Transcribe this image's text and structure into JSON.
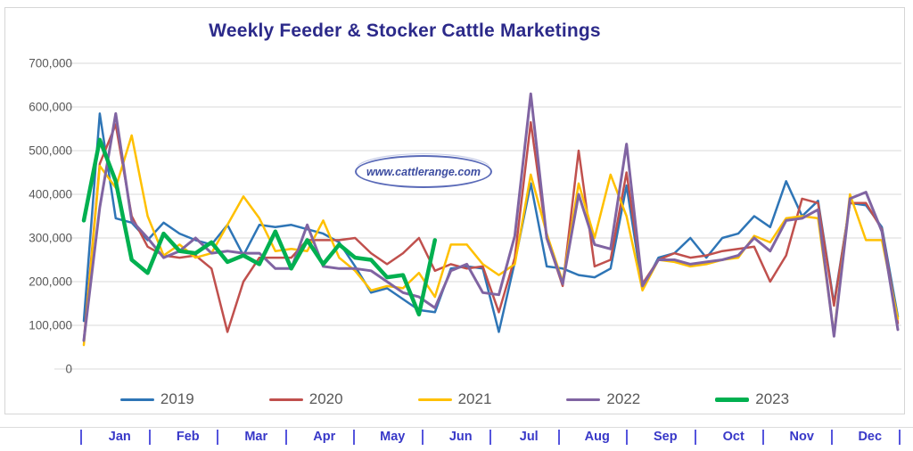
{
  "chart": {
    "title": "Weekly Feeder & Stocker Cattle Marketings",
    "title_color": "#2c2a8a",
    "watermark": "www.cattlerange.com",
    "border_color": "#d6d6d6",
    "gridline_color": "#d9d9d9",
    "axis_label_color": "#595959",
    "month_label_color": "#3838c8",
    "legend_label_color": "#595959"
  },
  "chart_data": {
    "type": "line",
    "title": "Weekly Feeder & Stocker Cattle Marketings",
    "x_unit": "week of year (1-52)",
    "x_axis_months": [
      "Jan",
      "Feb",
      "Mar",
      "Apr",
      "May",
      "Jun",
      "Jul",
      "Aug",
      "Sep",
      "Oct",
      "Nov",
      "Dec"
    ],
    "ylim": [
      0,
      700000
    ],
    "y_ticks": [
      0,
      100000,
      200000,
      300000,
      400000,
      500000,
      600000,
      700000
    ],
    "y_tick_labels": [
      "0",
      "100,000",
      "200,000",
      "300,000",
      "400,000",
      "500,000",
      "600,000",
      "700,000"
    ],
    "grid": "horizontal gridlines every 100,000",
    "legend_position": "bottom",
    "series": [
      {
        "name": "2019",
        "color": "#2E75B6",
        "line_width": 2.5,
        "values": [
          110000,
          585000,
          345000,
          335000,
          295000,
          335000,
          310000,
          295000,
          285000,
          330000,
          260000,
          330000,
          325000,
          330000,
          320000,
          310000,
          290000,
          235000,
          175000,
          185000,
          160000,
          135000,
          130000,
          230000,
          235000,
          230000,
          85000,
          245000,
          425000,
          235000,
          230000,
          215000,
          210000,
          230000,
          420000,
          185000,
          255000,
          265000,
          300000,
          255000,
          300000,
          310000,
          350000,
          325000,
          430000,
          350000,
          385000,
          150000,
          380000,
          375000,
          325000,
          120000
        ]
      },
      {
        "name": "2020",
        "color": "#C0504D",
        "line_width": 2.5,
        "values": [
          65000,
          470000,
          560000,
          350000,
          280000,
          260000,
          255000,
          260000,
          230000,
          85000,
          200000,
          255000,
          255000,
          255000,
          295000,
          295000,
          295000,
          300000,
          265000,
          240000,
          265000,
          300000,
          225000,
          240000,
          230000,
          235000,
          130000,
          255000,
          565000,
          300000,
          190000,
          500000,
          235000,
          250000,
          450000,
          195000,
          250000,
          265000,
          255000,
          260000,
          270000,
          275000,
          280000,
          200000,
          260000,
          390000,
          380000,
          145000,
          380000,
          380000,
          320000,
          105000
        ]
      },
      {
        "name": "2021",
        "color": "#FFC000",
        "line_width": 2.5,
        "values": [
          55000,
          465000,
          415000,
          535000,
          350000,
          260000,
          285000,
          255000,
          265000,
          330000,
          395000,
          345000,
          270000,
          275000,
          270000,
          340000,
          255000,
          225000,
          180000,
          190000,
          185000,
          220000,
          165000,
          285000,
          285000,
          240000,
          215000,
          240000,
          445000,
          310000,
          200000,
          425000,
          300000,
          445000,
          350000,
          180000,
          250000,
          245000,
          235000,
          240000,
          250000,
          255000,
          305000,
          290000,
          345000,
          350000,
          345000,
          80000,
          400000,
          295000,
          295000,
          115000
        ]
      },
      {
        "name": "2022",
        "color": "#8064A2",
        "line_width": 3,
        "values": [
          65000,
          370000,
          585000,
          340000,
          300000,
          255000,
          270000,
          300000,
          265000,
          270000,
          265000,
          265000,
          230000,
          230000,
          330000,
          235000,
          230000,
          230000,
          225000,
          200000,
          175000,
          165000,
          140000,
          225000,
          240000,
          175000,
          170000,
          305000,
          630000,
          300000,
          195000,
          400000,
          285000,
          275000,
          515000,
          190000,
          250000,
          250000,
          240000,
          245000,
          250000,
          260000,
          300000,
          270000,
          340000,
          345000,
          365000,
          75000,
          390000,
          405000,
          315000,
          90000
        ]
      },
      {
        "name": "2023",
        "color": "#00B050",
        "line_width": 4.5,
        "values": [
          340000,
          525000,
          430000,
          250000,
          220000,
          310000,
          270000,
          265000,
          290000,
          245000,
          260000,
          240000,
          315000,
          230000,
          295000,
          240000,
          285000,
          255000,
          250000,
          210000,
          215000,
          125000,
          295000
        ]
      }
    ]
  }
}
